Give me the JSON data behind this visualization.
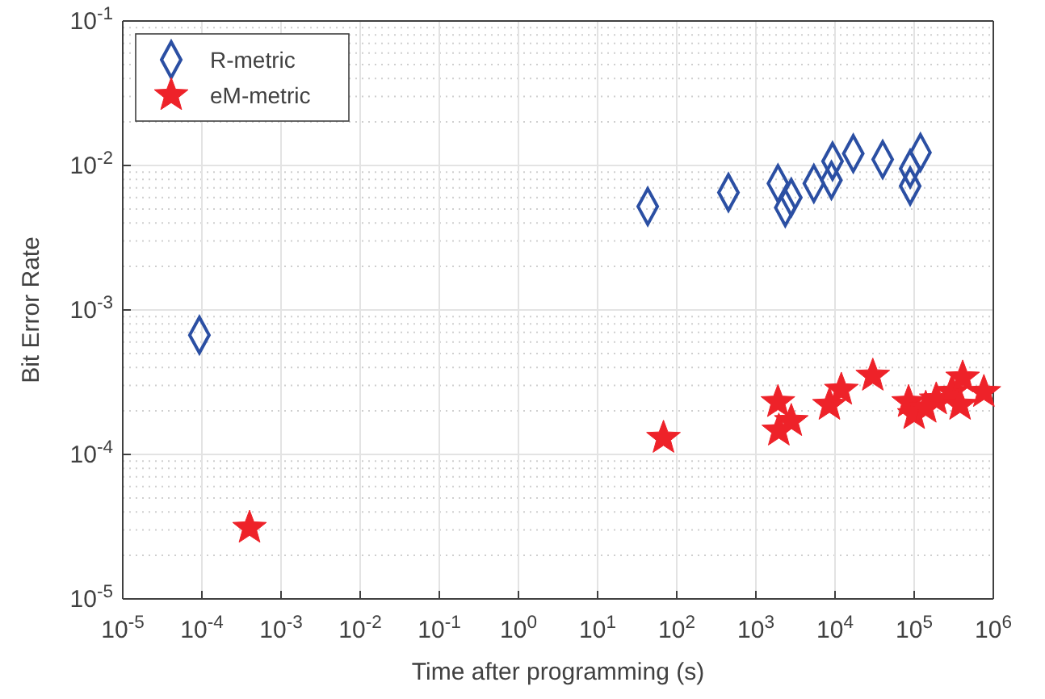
{
  "chart_data": {
    "type": "scatter",
    "xlabel": "Time after programming (s)",
    "ylabel": "Bit Error Rate",
    "log": "xy",
    "grid": true,
    "legend": "top left",
    "xlim": [
      1e-05,
      1000000.0
    ],
    "ylim": [
      1e-05,
      0.1
    ],
    "xticks": [
      {
        "value": 1e-05,
        "label": "10$^{-5}$"
      },
      {
        "value": 0.0001,
        "label": "10$^{-4}$"
      },
      {
        "value": 0.001,
        "label": "10$^{-3}$"
      },
      {
        "value": 0.01,
        "label": "10$^{-2}$"
      },
      {
        "value": 0.1,
        "label": "10$^{-1}$"
      },
      {
        "value": 1,
        "label": "10$^{0}$"
      },
      {
        "value": 10,
        "label": "10$^{1}$"
      },
      {
        "value": 100,
        "label": "10$^{2}$"
      },
      {
        "value": 1000,
        "label": "10$^{3}$"
      },
      {
        "value": 10000,
        "label": "10$^{4}$"
      },
      {
        "value": 100000,
        "label": "10$^{5}$"
      },
      {
        "value": 1000000,
        "label": "10$^{6}$"
      }
    ],
    "yticks": [
      {
        "value": 1e-05,
        "label": "10$^{-5}$"
      },
      {
        "value": 0.0001,
        "label": "10$^{-4}$"
      },
      {
        "value": 0.001,
        "label": "10$^{-3}$"
      },
      {
        "value": 0.01,
        "label": "10$^{-2}$"
      },
      {
        "value": 0.1,
        "label": "10$^{-1}$"
      }
    ],
    "series": [
      {
        "name": "R-metric",
        "color": "#2b4fa3",
        "marker": "diamond",
        "x": [
          9.3e-05,
          43,
          450,
          1900,
          2800,
          2350,
          5400,
          9000,
          9300,
          17000,
          40000,
          89000,
          89000,
          120000
        ],
        "values": [
          0.00067,
          0.0052,
          0.0065,
          0.0075,
          0.006,
          0.0051,
          0.0075,
          0.0079,
          0.0107,
          0.0121,
          0.011,
          0.0072,
          0.0095,
          0.0123
        ]
      },
      {
        "name": "eM-metric",
        "color": "#ee2229",
        "marker": "star",
        "x": [
          0.0004,
          68,
          1900,
          2800,
          1950,
          8500,
          12000,
          30000,
          85000,
          100000,
          190000,
          300000,
          410000,
          380000,
          760000,
          140000
        ],
        "values": [
          3.1e-05,
          0.00013,
          0.00023,
          0.00017,
          0.000146,
          0.00022,
          0.00028,
          0.00035,
          0.00023,
          0.00019,
          0.00024,
          0.00027,
          0.00034,
          0.00022,
          0.00027,
          0.00021
        ]
      }
    ]
  }
}
